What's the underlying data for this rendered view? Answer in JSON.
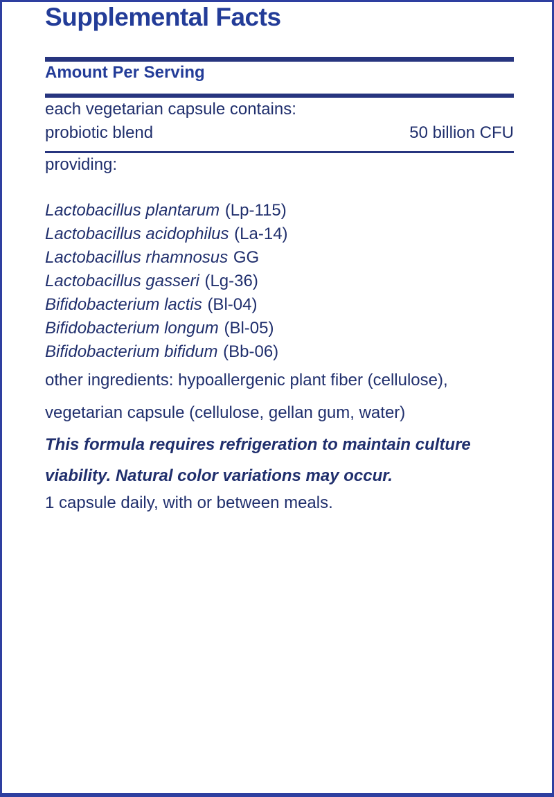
{
  "label": {
    "title": "Supplemental Facts",
    "amount_header": "Amount Per Serving",
    "serving_line": "each vegetarian capsule contains:",
    "blend": {
      "name": "probiotic blend",
      "amount": "50 billion CFU"
    },
    "providing_label": "providing:",
    "strains": [
      {
        "species": "Lactobacillus plantarum",
        "code": "(Lp-115)"
      },
      {
        "species": "Lactobacillus acidophilus",
        "code": "(La-14)"
      },
      {
        "species": "Lactobacillus rhamnosus",
        "code": "GG"
      },
      {
        "species": "Lactobacillus gasseri",
        "code": "(Lg-36)"
      },
      {
        "species": "Bifidobacterium lactis",
        "code": "(Bl-04)"
      },
      {
        "species": "Bifidobacterium longum",
        "code": "(Bl-05)"
      },
      {
        "species": "Bifidobacterium bifidum",
        "code": "(Bb-06)"
      }
    ],
    "other_ingredients_lines": [
      "other ingredients: hypoallergenic plant fiber (cellulose),",
      "vegetarian capsule (cellulose, gellan gum, water)"
    ],
    "notice_lines": [
      "This formula requires refrigeration to maintain culture",
      "viability. Natural color variations may occur."
    ],
    "dosage": "1 capsule daily, with or between meals."
  },
  "colors": {
    "title_text": "#233c98",
    "body_text": "#202f6d",
    "rule": "#27357f",
    "border": "#2e3fa0",
    "background": "#ffffff"
  }
}
